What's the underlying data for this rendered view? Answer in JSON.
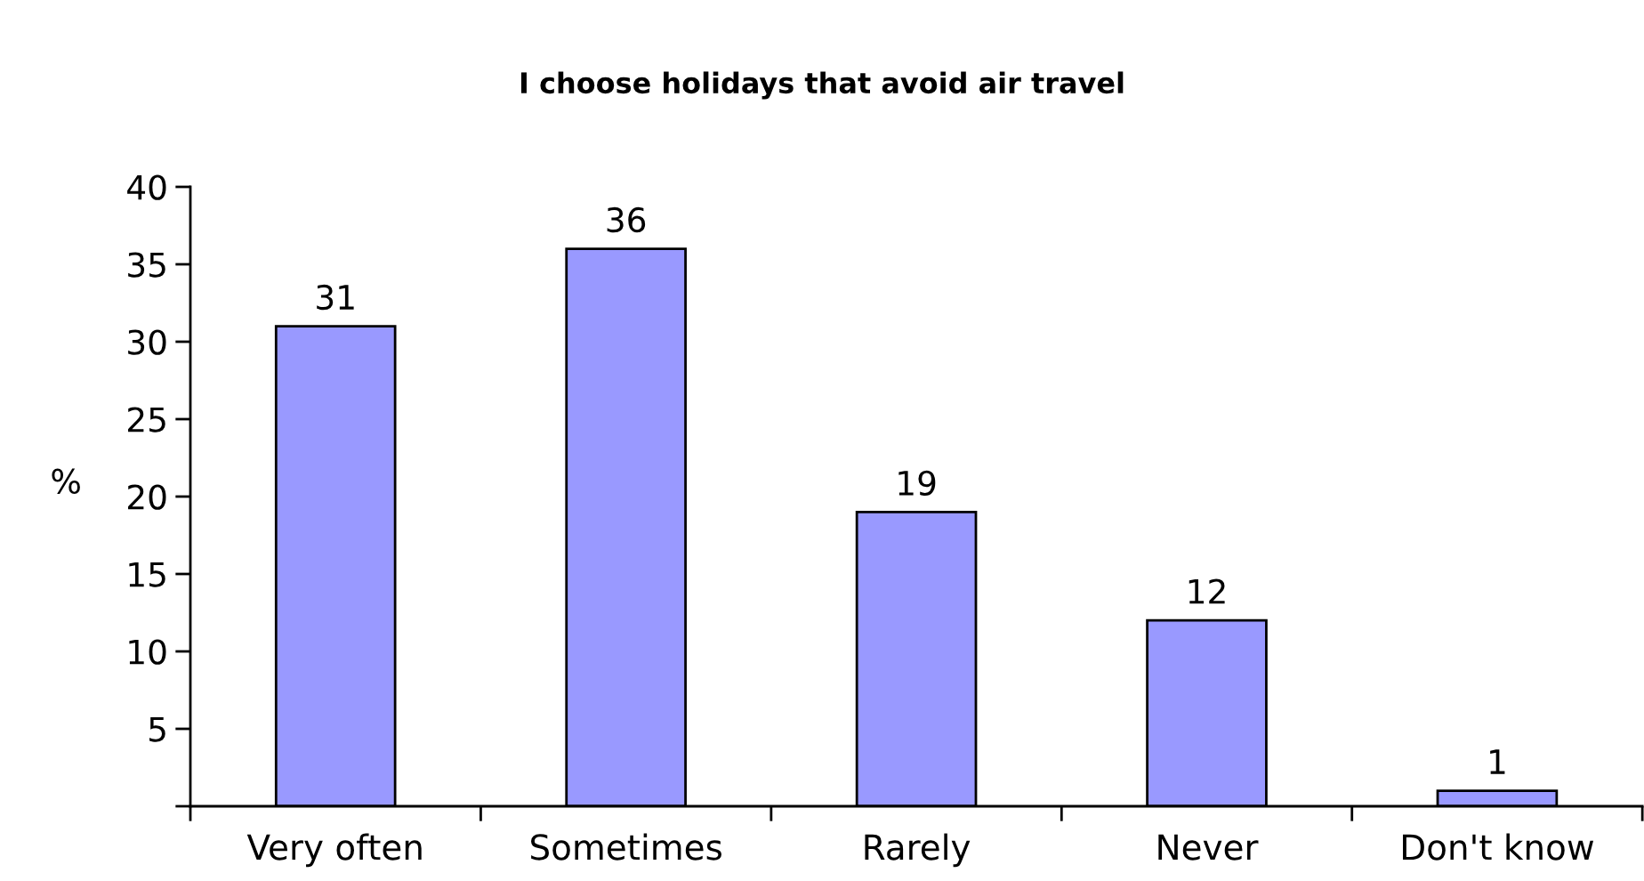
{
  "chart_data": {
    "type": "bar",
    "title": "I choose holidays that avoid air travel",
    "ylabel": "%",
    "categories": [
      "Very often",
      "Sometimes",
      "Rarely",
      "Never",
      "Don't know"
    ],
    "values": [
      31,
      36,
      19,
      12,
      1
    ],
    "color": "#9999ff",
    "ylim": [
      0,
      40
    ],
    "yticks": [
      {
        "value": 0,
        "label": null
      },
      5,
      10,
      15,
      20,
      25,
      30,
      35,
      40
    ],
    "data_labels": true,
    "grid": false,
    "legend": false
  }
}
